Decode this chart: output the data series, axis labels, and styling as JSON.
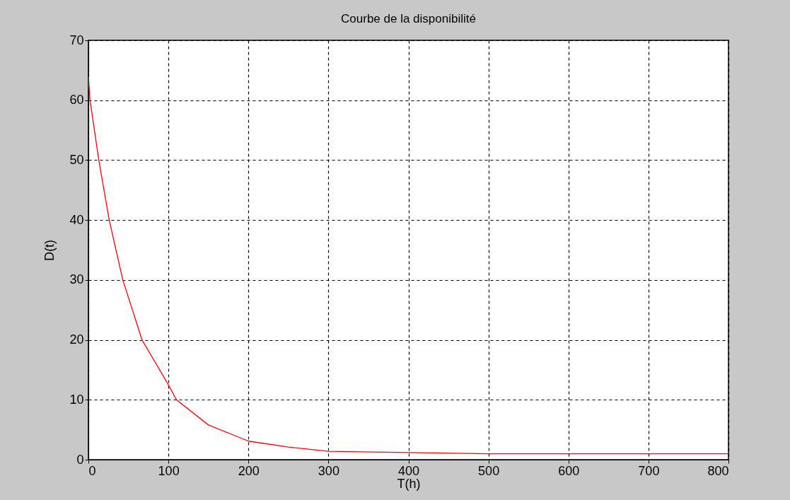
{
  "chart_data": {
    "type": "line",
    "title": "Courbe de la disponibilité",
    "xlabel": "T(h)",
    "ylabel": "D(t)",
    "x": [
      0,
      2,
      13,
      26,
      43,
      67,
      100,
      110,
      150,
      200,
      250,
      300,
      400,
      500,
      600,
      700,
      800
    ],
    "series": [
      {
        "color": "#ff0000",
        "values": [
          64,
          60,
          50,
          40,
          30,
          20,
          12.5,
          10,
          5.8,
          3.1,
          2.1,
          1.4,
          1.2,
          1,
          1,
          1,
          1
        ]
      }
    ],
    "xlim": [
      0,
      800
    ],
    "xticks": [
      0,
      100,
      200,
      300,
      400,
      500,
      600,
      700,
      800
    ],
    "ylim": [
      0,
      70
    ],
    "yticks": [
      0,
      10,
      20,
      30,
      40,
      50,
      60,
      70
    ],
    "grid": true,
    "line_style": "solid"
  }
}
